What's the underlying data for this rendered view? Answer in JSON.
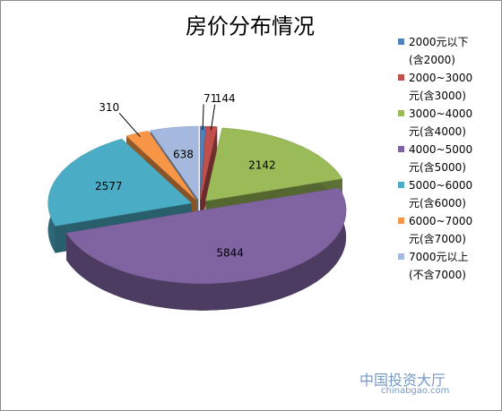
{
  "chart_data": {
    "type": "pie3d",
    "title": "房价分布情况",
    "categories": [
      "2000元以下(含2000)",
      "2000~3000元(含3000)",
      "3000~4000元(含4000)",
      "4000~5000元(含5000)",
      "5000~6000元(含6000)",
      "6000~7000元(含7000)",
      "7000元以上(不含7000)"
    ],
    "values": [
      71,
      144,
      2142,
      5844,
      2577,
      310,
      638
    ],
    "colors": [
      "#4f81bd",
      "#c0504d",
      "#9bbb59",
      "#8064a2",
      "#4bacc6",
      "#f79646",
      "#a5b8de"
    ],
    "legend": "right"
  },
  "watermark": {
    "title": "中国投资大厅",
    "url": "chinabgao.com"
  }
}
